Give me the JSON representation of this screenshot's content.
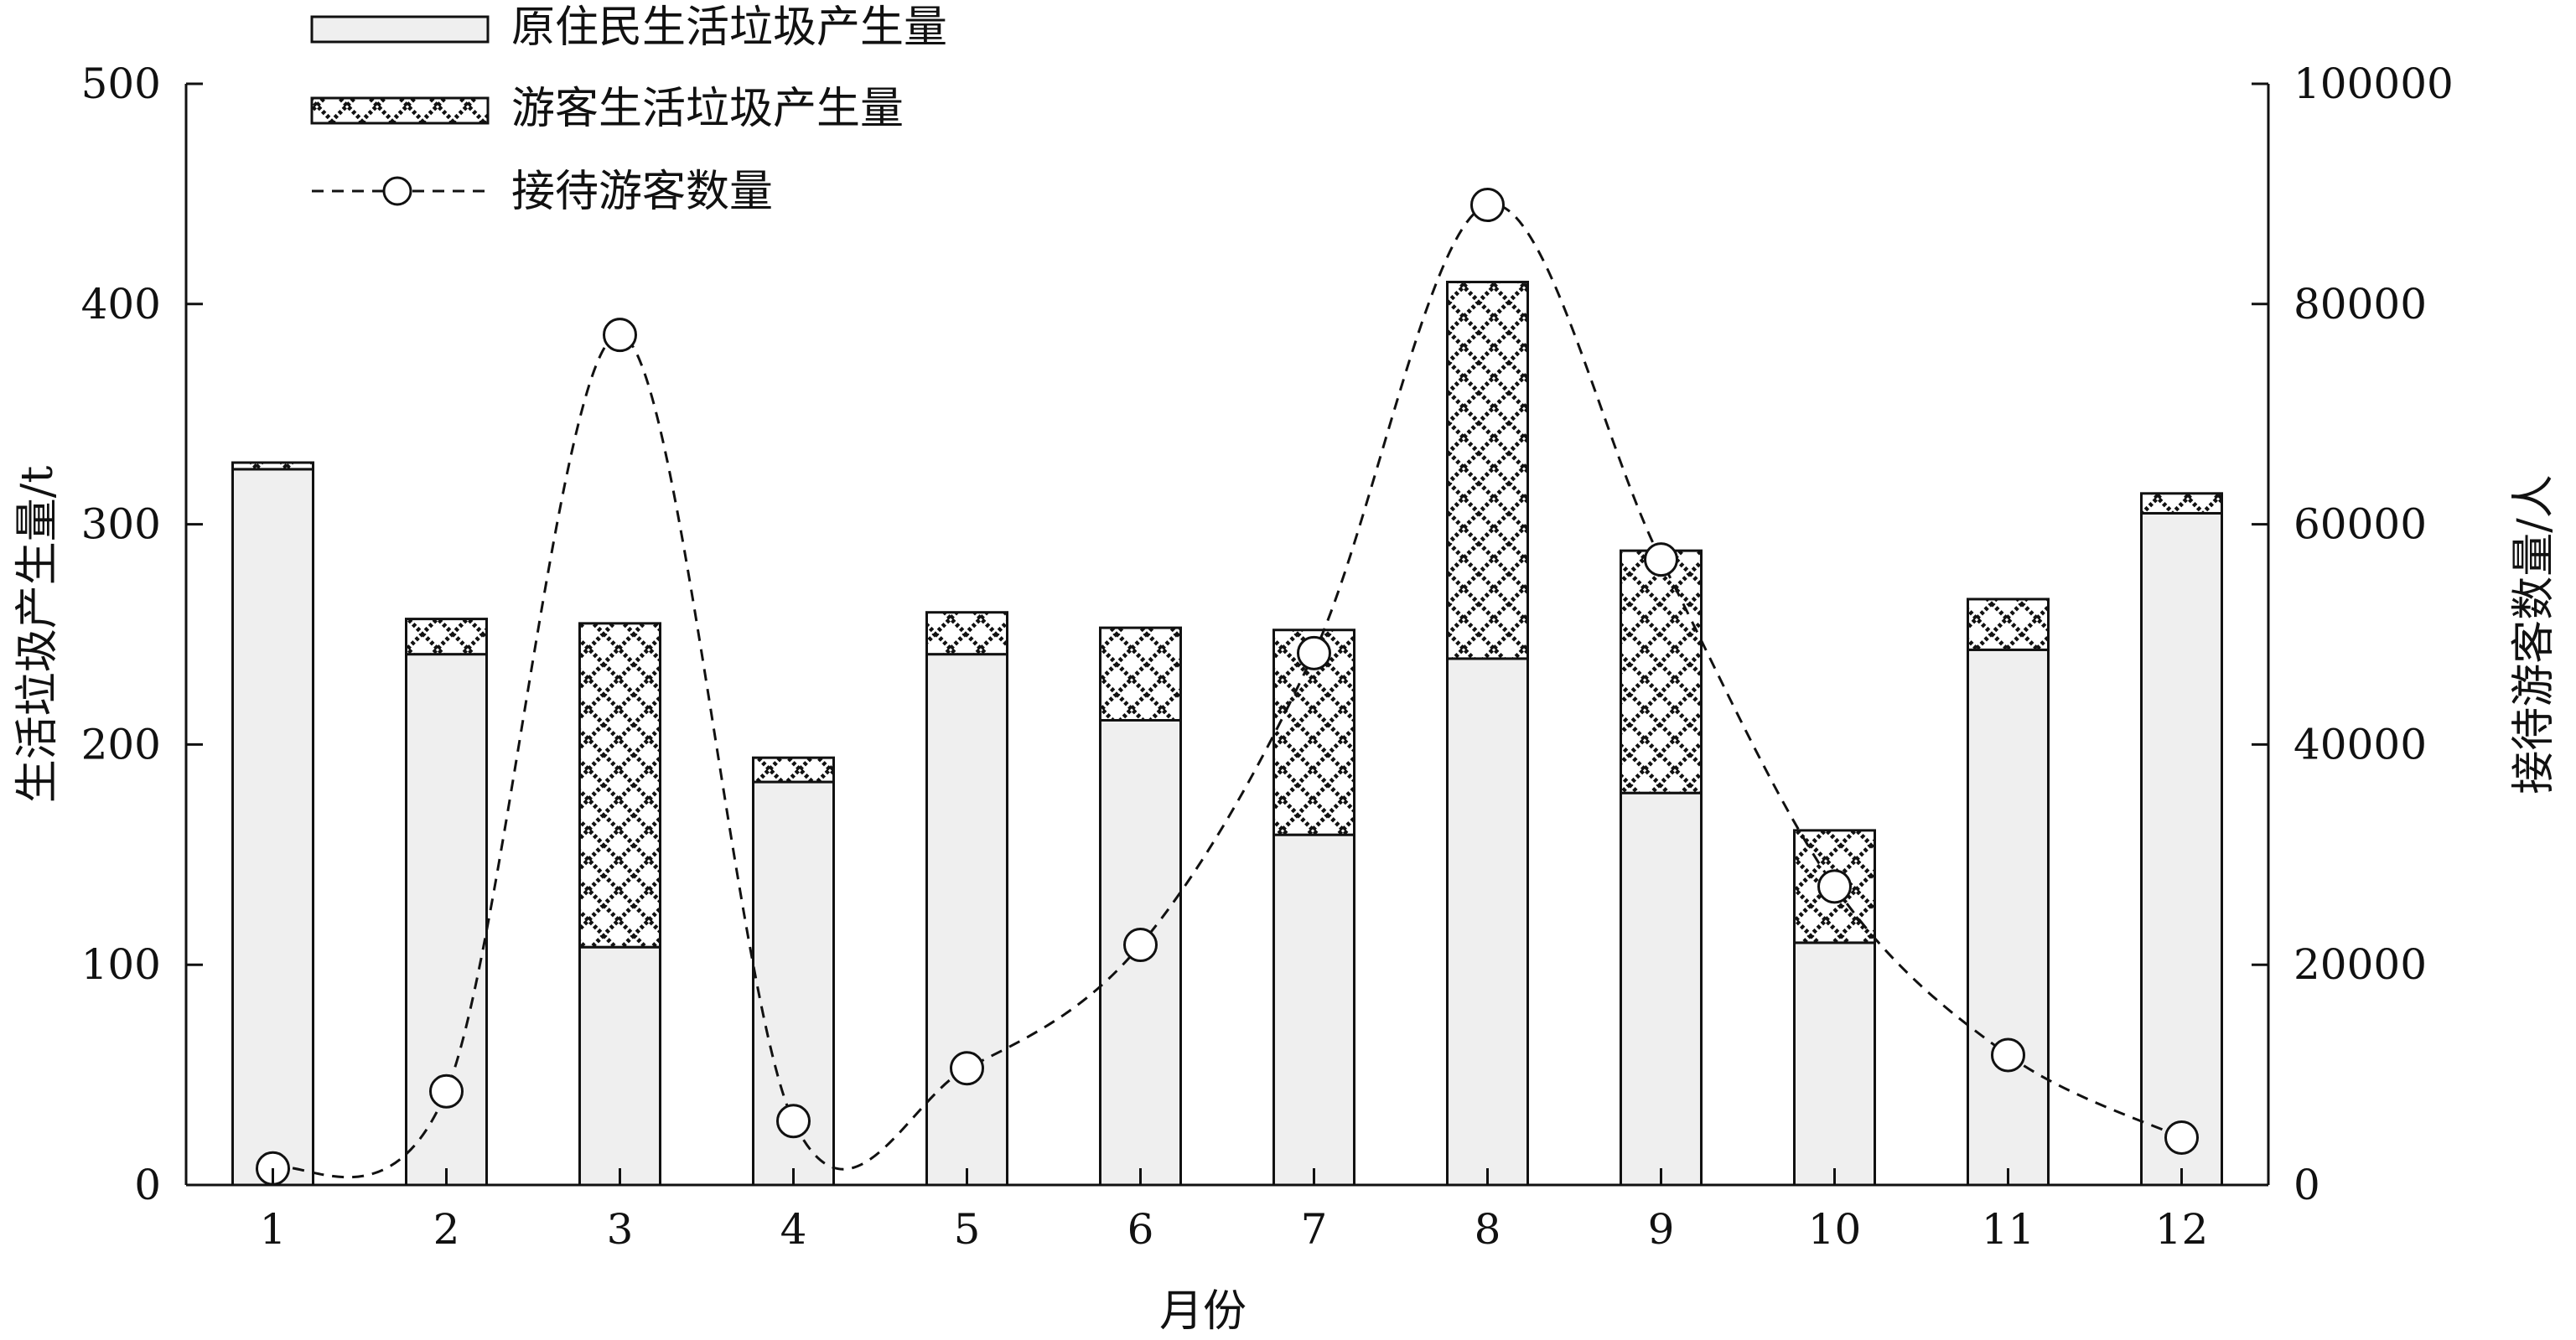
{
  "chart_data": {
    "type": "bar",
    "xlabel": "月份",
    "ylabel": "生活垃圾产生量/t",
    "y2label": "接待游客数量/人",
    "categories": [
      "1",
      "2",
      "3",
      "4",
      "5",
      "6",
      "7",
      "8",
      "9",
      "10",
      "11",
      "12"
    ],
    "ylim": [
      0,
      500
    ],
    "y2lim": [
      0,
      100000
    ],
    "yticks": [
      "0",
      "100",
      "200",
      "300",
      "400",
      "500"
    ],
    "y2ticks": [
      "0",
      "20000",
      "40000",
      "60000",
      "80000",
      "100000"
    ],
    "grid": false,
    "legend_position": "top-left",
    "series": [
      {
        "name": "原住民生活垃圾产生量",
        "kind": "bar-stacked",
        "values": [
          325,
          241,
          108,
          183,
          241,
          211,
          159,
          239,
          178,
          110,
          243,
          305
        ]
      },
      {
        "name": "游客生活垃圾产生量",
        "kind": "bar-stacked",
        "values": [
          3,
          16,
          147,
          11,
          19,
          42,
          93,
          171,
          110,
          51,
          23,
          9
        ]
      },
      {
        "name": "接待游客数量",
        "kind": "line",
        "axis": "right",
        "values": [
          1500,
          8500,
          77200,
          5800,
          10600,
          21800,
          48300,
          89000,
          56800,
          27100,
          11800,
          4300
        ]
      }
    ]
  }
}
